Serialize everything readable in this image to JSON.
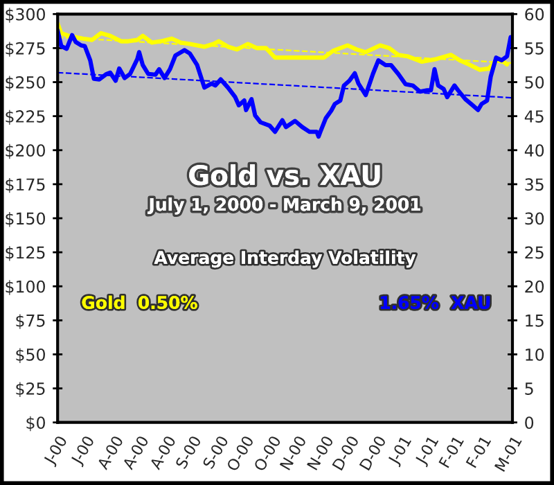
{
  "chart_data": {
    "type": "line",
    "title": "Gold vs. XAU",
    "subtitle": "July 1, 2000 - March 9, 2001",
    "annotations": [
      "Average Interday Volatility",
      "Gold  0.50%",
      "1.65%  XAU"
    ],
    "series": [
      {
        "color": "#ffff00",
        "x": [
          "2000-07-01",
          "2000-07-03",
          "2000-07-07",
          "2000-07-15",
          "2000-07-20",
          "2000-07-25",
          "2000-07-30",
          "2000-08-05",
          "2000-08-09",
          "2000-08-14",
          "2000-08-17",
          "2000-08-22",
          "2000-08-27",
          "2000-09-02",
          "2000-09-07",
          "2000-09-12",
          "2000-09-20",
          "2000-09-25",
          "2000-09-28",
          "2000-10-03",
          "2000-10-08",
          "2000-10-14",
          "2000-10-19",
          "2000-10-24",
          "2000-10-29",
          "2000-11-05",
          "2000-11-15",
          "2000-11-25",
          "2000-11-30",
          "2000-12-08",
          "2000-12-13",
          "2000-12-18",
          "2000-12-26",
          "2000-12-31",
          "2001-01-05",
          "2001-01-10",
          "2001-01-18",
          "2001-01-26",
          "2001-02-03",
          "2001-02-08",
          "2001-02-13",
          "2001-02-19",
          "2001-02-24",
          "2001-02-28",
          "2001-03-04",
          "2001-03-06"
        ],
        "values": [
          293,
          286,
          284,
          282,
          281,
          286,
          284,
          280,
          280,
          281,
          284,
          279,
          280,
          282,
          279,
          278,
          276,
          278,
          280,
          276,
          274,
          278,
          275,
          275,
          268,
          268,
          268,
          268,
          273,
          277,
          274,
          272,
          277,
          275,
          270,
          269,
          265,
          267,
          270,
          266,
          263,
          259,
          260,
          266,
          265,
          263
        ]
      },
      {
        "color": "#0000ff",
        "axis": "y2",
        "x": [
          "2000-07-01",
          "2000-07-03",
          "2000-07-06",
          "2000-07-09",
          "2000-07-11",
          "2000-07-14",
          "2000-07-16",
          "2000-07-19",
          "2000-07-21",
          "2000-07-24",
          "2000-07-28",
          "2000-07-30",
          "2000-08-02",
          "2000-08-04",
          "2000-08-07",
          "2000-08-10",
          "2000-08-14",
          "2000-08-15",
          "2000-08-17",
          "2000-08-20",
          "2000-08-24",
          "2000-08-26",
          "2000-08-29",
          "2000-09-01",
          "2000-09-04",
          "2000-09-09",
          "2000-09-12",
          "2000-09-16",
          "2000-09-20",
          "2000-09-24",
          "2000-09-26",
          "2000-09-29",
          "2000-10-03",
          "2000-10-07",
          "2000-10-09",
          "2000-10-12",
          "2000-10-13",
          "2000-10-16",
          "2000-10-18",
          "2000-10-21",
          "2000-10-26",
          "2000-10-29",
          "2000-11-02",
          "2000-11-04",
          "2000-11-09",
          "2000-11-13",
          "2000-11-17",
          "2000-11-21",
          "2000-11-22",
          "2000-11-23",
          "2000-11-26",
          "2000-11-29",
          "2000-12-01",
          "2000-12-04",
          "2000-12-06",
          "2000-12-09",
          "2000-12-12",
          "2000-12-14",
          "2000-12-18",
          "2000-12-22",
          "2000-12-25",
          "2000-12-29",
          "2001-01-01",
          "2001-01-05",
          "2001-01-09",
          "2001-01-13",
          "2001-01-17",
          "2001-01-21",
          "2001-01-23",
          "2001-01-25",
          "2001-01-27",
          "2001-01-30",
          "2001-02-01",
          "2001-02-05",
          "2001-02-07",
          "2001-02-11",
          "2001-02-15",
          "2001-02-18",
          "2001-02-20",
          "2001-02-23",
          "2001-02-25",
          "2001-02-28",
          "2001-03-03",
          "2001-03-06",
          "2001-03-08",
          "2001-03-09"
        ],
        "values": [
          57.6,
          55.3,
          54.9,
          56.9,
          55.9,
          55.4,
          55.3,
          53.2,
          50.5,
          50.4,
          51.2,
          51.4,
          50.2,
          52.0,
          50.6,
          51.2,
          53.4,
          54.4,
          52.5,
          51.2,
          51.1,
          51.9,
          50.6,
          51.9,
          53.9,
          54.7,
          54.2,
          52.5,
          49.2,
          49.8,
          49.5,
          50.4,
          49.2,
          47.8,
          46.6,
          47.3,
          45.9,
          47.5,
          45.1,
          44.1,
          43.6,
          42.7,
          44.4,
          43.4,
          44.3,
          43.4,
          42.7,
          42.7,
          42.0,
          42.7,
          44.7,
          45.8,
          46.8,
          47.3,
          49.5,
          50.2,
          51.3,
          49.8,
          48.1,
          51.2,
          53.2,
          52.5,
          52.5,
          51.2,
          49.7,
          49.5,
          48.6,
          48.8,
          48.8,
          51.9,
          49.5,
          49.0,
          47.8,
          49.5,
          48.8,
          47.5,
          46.6,
          45.9,
          46.8,
          47.3,
          50.8,
          53.6,
          53.2,
          53.8,
          56.6,
          55.6
        ]
      },
      {
        "color": "#ffff00",
        "line_style": "dashed",
        "x": [
          "2000-07-01",
          "2001-03-09"
        ],
        "values": [
          283,
          264
        ]
      },
      {
        "color": "#0000ff",
        "line_style": "dashed",
        "axis": "y2",
        "x": [
          "2000-07-01",
          "2001-03-09"
        ],
        "values": [
          51.4,
          47.7
        ]
      }
    ],
    "xlim": [
      "2000-07-01",
      "2001-03-09"
    ],
    "xticks": [
      {
        "value": "2000-07-01",
        "label": "J-00"
      },
      {
        "value": "2000-07-16",
        "label": "J-00"
      },
      {
        "value": "2000-08-01",
        "label": "A-00"
      },
      {
        "value": "2000-08-15",
        "label": "A-00"
      },
      {
        "value": "2000-08-30",
        "label": "A-00"
      },
      {
        "value": "2000-09-13",
        "label": "S-00"
      },
      {
        "value": "2000-09-28",
        "label": "S-00"
      },
      {
        "value": "2000-10-12",
        "label": "O-00"
      },
      {
        "value": "2000-10-27",
        "label": "O-00"
      },
      {
        "value": "2000-11-10",
        "label": "N-00"
      },
      {
        "value": "2000-11-25",
        "label": "N-00"
      },
      {
        "value": "2000-12-09",
        "label": "D-00"
      },
      {
        "value": "2000-12-24",
        "label": "D-00"
      },
      {
        "value": "2001-01-07",
        "label": "J-01"
      },
      {
        "value": "2001-01-22",
        "label": "J-01"
      },
      {
        "value": "2001-02-05",
        "label": "F-01"
      },
      {
        "value": "2001-02-20",
        "label": "F-01"
      },
      {
        "value": "2001-03-09",
        "label": "M-01"
      }
    ],
    "ylim": [
      0,
      300
    ],
    "yticks": [
      {
        "value": 0,
        "label": "$0"
      },
      {
        "value": 25,
        "label": "$25"
      },
      {
        "value": 50,
        "label": "$50"
      },
      {
        "value": 75,
        "label": "$75"
      },
      {
        "value": 100,
        "label": "$100"
      },
      {
        "value": 125,
        "label": "$125"
      },
      {
        "value": 150,
        "label": "$150"
      },
      {
        "value": 175,
        "label": "$175"
      },
      {
        "value": 200,
        "label": "$200"
      },
      {
        "value": 225,
        "label": "$225"
      },
      {
        "value": 250,
        "label": "$250"
      },
      {
        "value": 275,
        "label": "$275"
      },
      {
        "value": 300,
        "label": "$300"
      }
    ],
    "y2lim": [
      0,
      60
    ],
    "y2ticks": [
      0,
      5,
      10,
      15,
      20,
      25,
      30,
      35,
      40,
      45,
      50,
      55,
      60
    ],
    "grid": false,
    "legend": false
  }
}
